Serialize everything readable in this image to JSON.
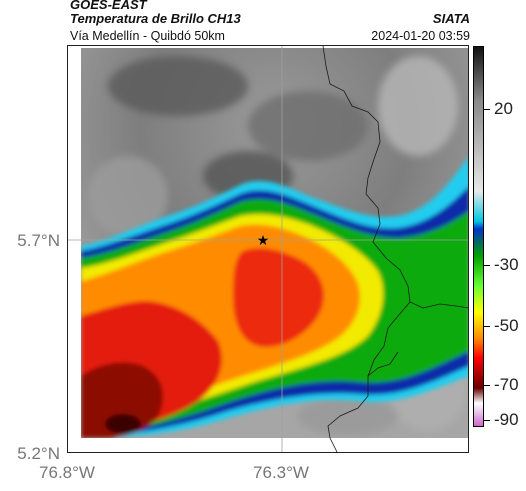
{
  "header": {
    "satellite": "GOES-EAST",
    "product": "Temperatura de Brillo CH13",
    "region": "Vía Medellín - Quibdó 50km",
    "agency": "SIATA",
    "datetime": "2024-01-20 03:59"
  },
  "map": {
    "lat_labels": [
      "5.7°N",
      "5.2°N"
    ],
    "lon_labels": [
      "76.8°W",
      "76.3°W"
    ],
    "marker_icon": "star-icon",
    "gridlines": true
  },
  "colorbar": {
    "labels": [
      "20",
      "-30",
      "-50",
      "-70",
      "-90"
    ],
    "stops": [
      {
        "color": "#111111"
      },
      {
        "color": "#888888"
      },
      {
        "color": "#e8e8e8"
      },
      {
        "color": "#00c8e0"
      },
      {
        "color": "#0033cc"
      },
      {
        "color": "#00a000"
      },
      {
        "color": "#66ff33"
      },
      {
        "color": "#ffff00"
      },
      {
        "color": "#ff8800"
      },
      {
        "color": "#ff0000"
      },
      {
        "color": "#6a0000"
      },
      {
        "color": "#ffffff"
      },
      {
        "color": "#cc66cc"
      }
    ]
  }
}
